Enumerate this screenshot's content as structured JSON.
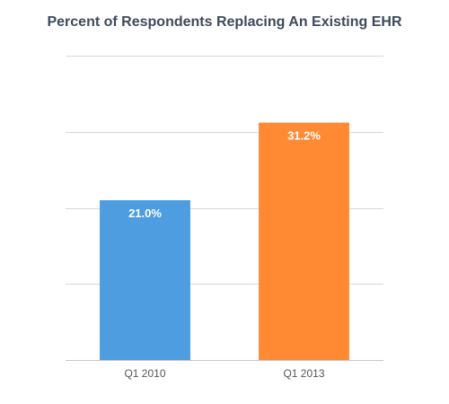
{
  "chart_data": {
    "type": "bar",
    "title": "Percent of Respondents Replacing An Existing EHR",
    "xlabel": "",
    "ylabel": "",
    "categories": [
      "Q1 2010",
      "Q1 2013"
    ],
    "values": [
      21.0,
      31.2
    ],
    "data_labels": [
      "21.0%",
      "31.2%"
    ],
    "colors": [
      "#4d9de0",
      "#ff8a33"
    ],
    "ylim": [
      0,
      40
    ],
    "gridlines": [
      0,
      10,
      20,
      30,
      40
    ],
    "grid": true,
    "legend": "none",
    "y_tick_labels_shown": false
  }
}
